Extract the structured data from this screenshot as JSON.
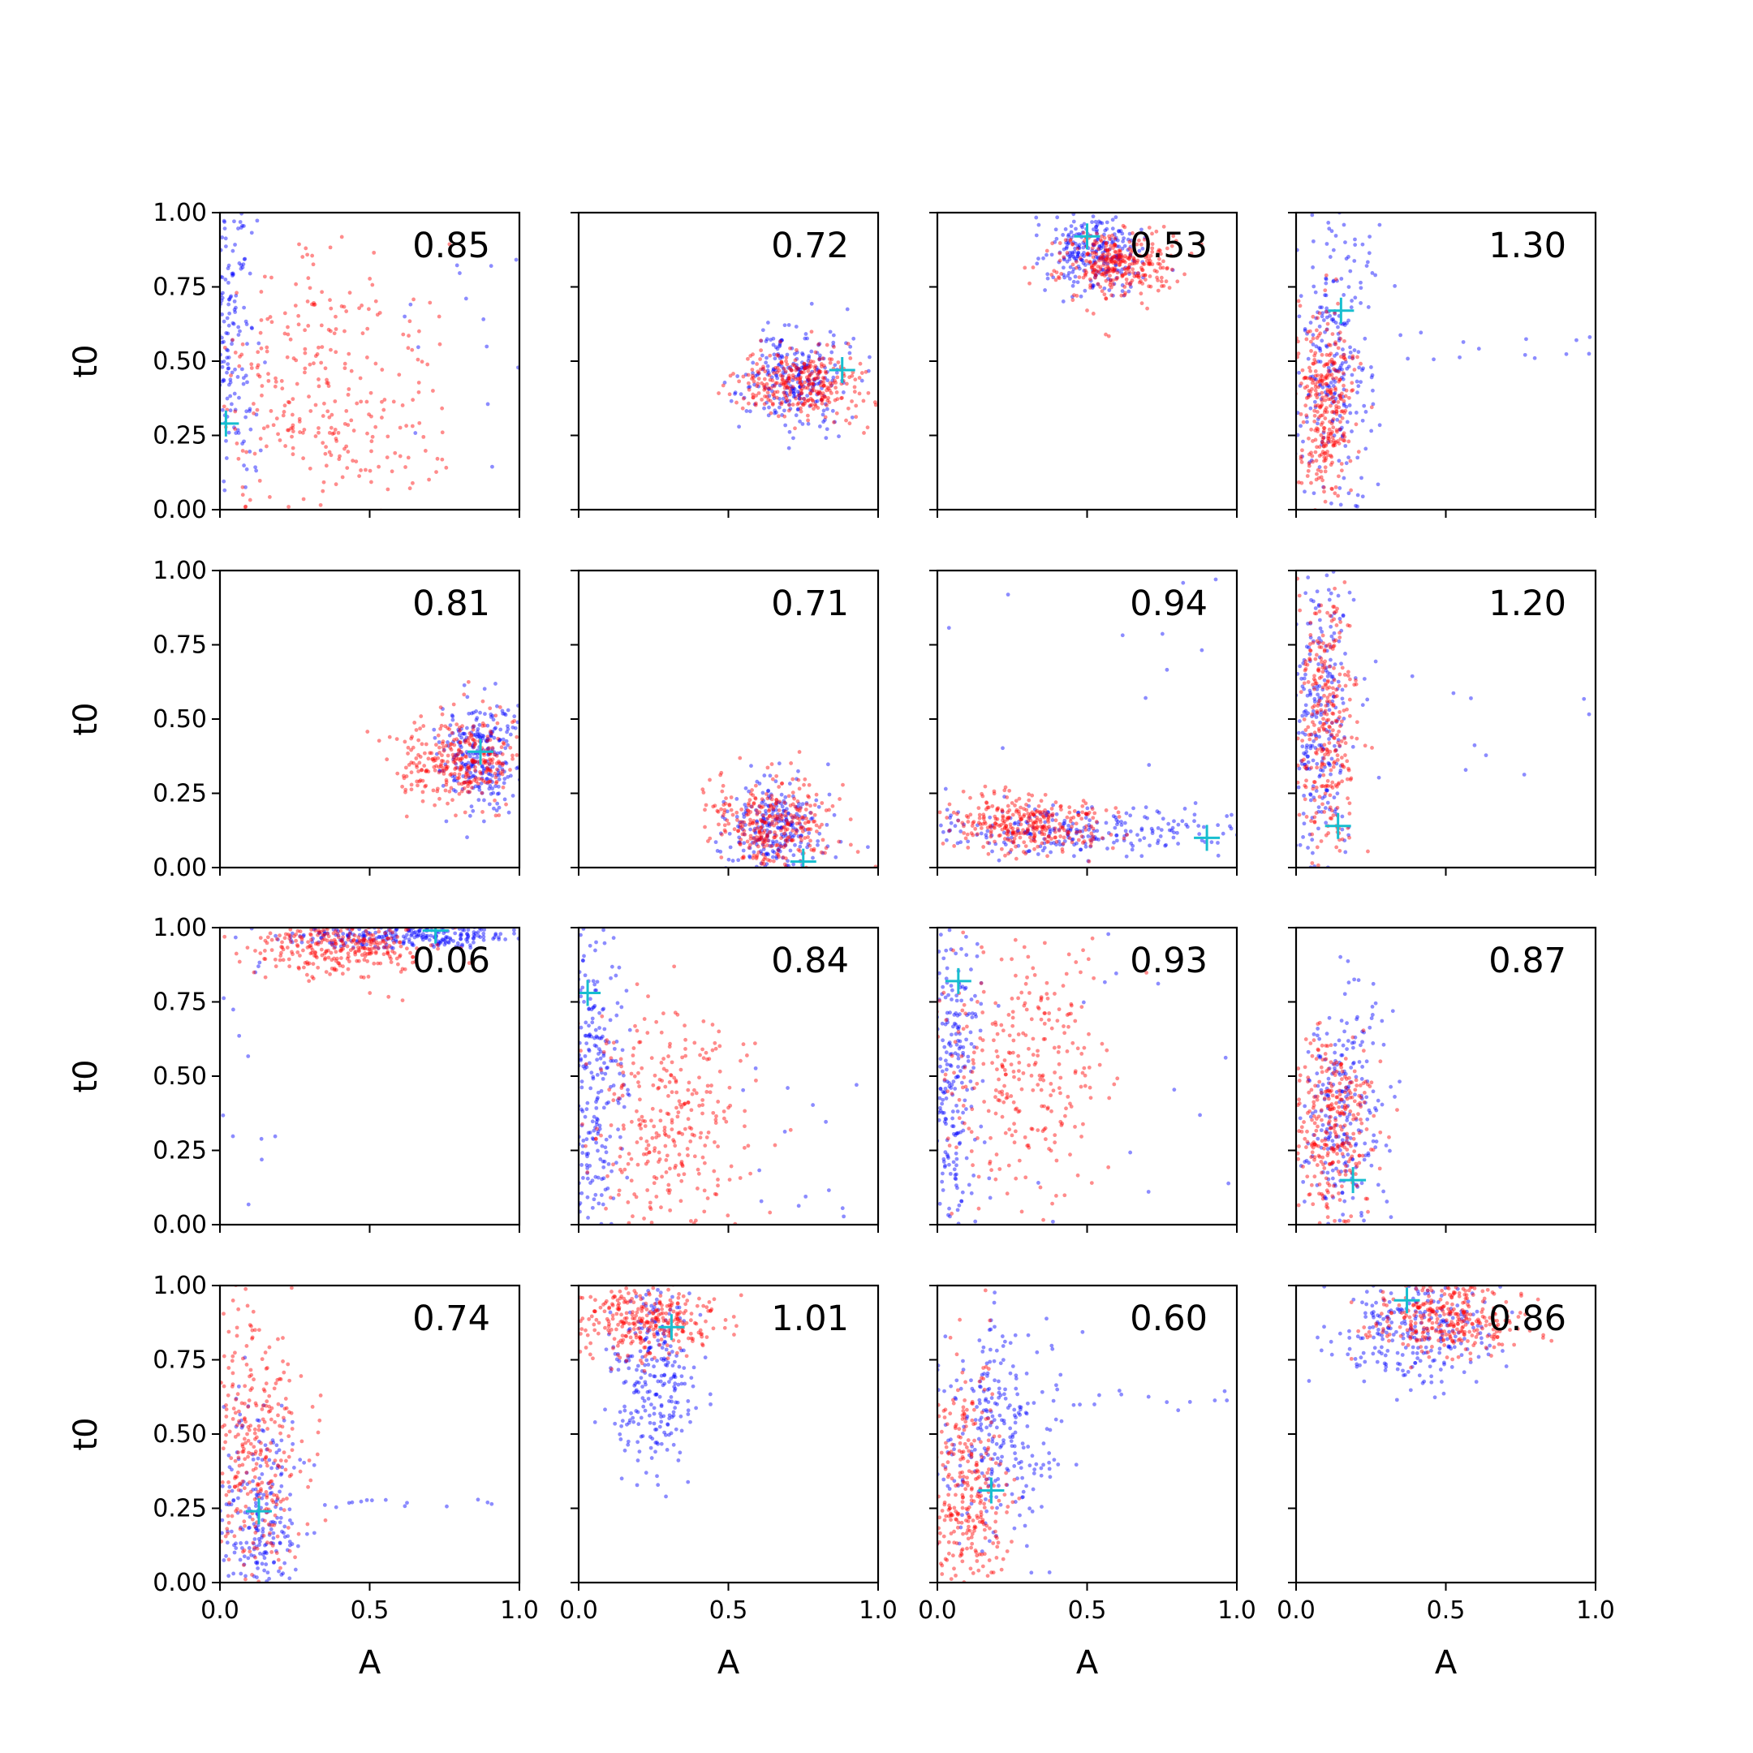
{
  "chart_data": {
    "type": "scatter",
    "layout": "4x4 grid of scatter subplots",
    "xlabel": "A",
    "ylabel": "t0",
    "xlim": [
      0.0,
      1.0
    ],
    "ylim": [
      0.0,
      1.0
    ],
    "xticks": [
      "0.0",
      "0.5",
      "1.0"
    ],
    "yticks": [
      "0.00",
      "0.25",
      "0.50",
      "0.75",
      "1.00"
    ],
    "grid": false,
    "legend": "none",
    "colors": {
      "series_blue": "#0000ff",
      "series_red": "#ff0000",
      "marker": "#17becf"
    },
    "panels": [
      {
        "label": "0.85",
        "marker": [
          0.02,
          0.29
        ],
        "blue": {
          "cx": 0.02,
          "cy": 0.55,
          "sx": 0.05,
          "sy": 0.35,
          "n": 260,
          "tail": {
            "x": [
              0.6,
              1.0
            ],
            "y": [
              0.0,
              1.0
            ],
            "n": 14
          }
        },
        "red": {
          "cx": 0.33,
          "cy": 0.38,
          "sx": 0.2,
          "sy": 0.25,
          "n": 320
        }
      },
      {
        "label": "0.72",
        "marker": [
          0.88,
          0.47
        ],
        "blue": {
          "cx": 0.72,
          "cy": 0.44,
          "sx": 0.08,
          "sy": 0.08,
          "n": 260
        },
        "red": {
          "cx": 0.75,
          "cy": 0.43,
          "sx": 0.1,
          "sy": 0.06,
          "n": 320
        }
      },
      {
        "label": "0.53",
        "marker": [
          0.5,
          0.92
        ],
        "blue": {
          "cx": 0.52,
          "cy": 0.87,
          "sx": 0.08,
          "sy": 0.07,
          "n": 260
        },
        "red": {
          "cx": 0.6,
          "cy": 0.83,
          "sx": 0.1,
          "sy": 0.06,
          "n": 320
        }
      },
      {
        "label": "1.30",
        "marker": [
          0.15,
          0.67
        ],
        "blue": {
          "cx": 0.13,
          "cy": 0.5,
          "sx": 0.06,
          "sy": 0.25,
          "n": 260,
          "tail": {
            "x": [
              0.25,
              1.0
            ],
            "y": [
              0.5,
              0.6
            ],
            "n": 14
          }
        },
        "red": {
          "cx": 0.1,
          "cy": 0.35,
          "sx": 0.05,
          "sy": 0.15,
          "n": 320
        }
      },
      {
        "label": "0.81",
        "marker": [
          0.87,
          0.39
        ],
        "blue": {
          "cx": 0.87,
          "cy": 0.38,
          "sx": 0.07,
          "sy": 0.09,
          "n": 260
        },
        "red": {
          "cx": 0.8,
          "cy": 0.36,
          "sx": 0.1,
          "sy": 0.07,
          "n": 320
        }
      },
      {
        "label": "0.71",
        "marker": [
          0.75,
          0.02
        ],
        "blue": {
          "cx": 0.65,
          "cy": 0.12,
          "sx": 0.08,
          "sy": 0.08,
          "n": 260
        },
        "red": {
          "cx": 0.65,
          "cy": 0.15,
          "sx": 0.1,
          "sy": 0.08,
          "n": 320
        }
      },
      {
        "label": "0.94",
        "marker": [
          0.9,
          0.1
        ],
        "blue": {
          "cx": 0.5,
          "cy": 0.12,
          "sx": 0.3,
          "sy": 0.04,
          "n": 260,
          "tail": {
            "x": [
              0.0,
              1.0
            ],
            "y": [
              0.0,
              1.0
            ],
            "n": 14
          }
        },
        "red": {
          "cx": 0.3,
          "cy": 0.15,
          "sx": 0.13,
          "sy": 0.05,
          "n": 320
        }
      },
      {
        "label": "1.20",
        "marker": [
          0.14,
          0.14
        ],
        "blue": {
          "cx": 0.08,
          "cy": 0.5,
          "sx": 0.05,
          "sy": 0.28,
          "n": 260,
          "tail": {
            "x": [
              0.2,
              1.0
            ],
            "y": [
              0.3,
              0.7
            ],
            "n": 14
          }
        },
        "red": {
          "cx": 0.1,
          "cy": 0.5,
          "sx": 0.05,
          "sy": 0.25,
          "n": 320
        }
      },
      {
        "label": "0.06",
        "marker": [
          0.72,
          0.99
        ],
        "blue": {
          "cx": 0.6,
          "cy": 0.97,
          "sx": 0.2,
          "sy": 0.02,
          "n": 260,
          "tail": {
            "x": [
              0.0,
              0.2
            ],
            "y": [
              0.0,
              1.0
            ],
            "n": 14
          }
        },
        "red": {
          "cx": 0.4,
          "cy": 0.94,
          "sx": 0.15,
          "sy": 0.05,
          "n": 320
        }
      },
      {
        "label": "0.84",
        "marker": [
          0.03,
          0.78
        ],
        "blue": {
          "cx": 0.05,
          "cy": 0.45,
          "sx": 0.05,
          "sy": 0.3,
          "n": 260,
          "tail": {
            "x": [
              0.4,
              1.0
            ],
            "y": [
              0.0,
              0.6
            ],
            "n": 14
          }
        },
        "red": {
          "cx": 0.3,
          "cy": 0.35,
          "sx": 0.15,
          "sy": 0.2,
          "n": 320
        }
      },
      {
        "label": "0.93",
        "marker": [
          0.07,
          0.82
        ],
        "blue": {
          "cx": 0.05,
          "cy": 0.5,
          "sx": 0.05,
          "sy": 0.3,
          "n": 260,
          "tail": {
            "x": [
              0.3,
              1.0
            ],
            "y": [
              0.0,
              1.0
            ],
            "n": 14
          }
        },
        "red": {
          "cx": 0.25,
          "cy": 0.55,
          "sx": 0.15,
          "sy": 0.25,
          "n": 320
        }
      },
      {
        "label": "0.87",
        "marker": [
          0.19,
          0.15
        ],
        "blue": {
          "cx": 0.15,
          "cy": 0.35,
          "sx": 0.07,
          "sy": 0.22,
          "n": 260
        },
        "red": {
          "cx": 0.12,
          "cy": 0.33,
          "sx": 0.07,
          "sy": 0.15,
          "n": 320
        }
      },
      {
        "label": "0.74",
        "marker": [
          0.13,
          0.24
        ],
        "blue": {
          "cx": 0.12,
          "cy": 0.2,
          "sx": 0.07,
          "sy": 0.18,
          "n": 260,
          "tail": {
            "x": [
              0.3,
              1.0
            ],
            "y": [
              0.25,
              0.28
            ],
            "n": 14
          }
        },
        "red": {
          "cx": 0.12,
          "cy": 0.45,
          "sx": 0.08,
          "sy": 0.25,
          "n": 320
        }
      },
      {
        "label": "1.01",
        "marker": [
          0.31,
          0.86
        ],
        "blue": {
          "cx": 0.25,
          "cy": 0.7,
          "sx": 0.07,
          "sy": 0.15,
          "n": 260
        },
        "red": {
          "cx": 0.22,
          "cy": 0.88,
          "sx": 0.12,
          "sy": 0.06,
          "n": 320
        }
      },
      {
        "label": "0.60",
        "marker": [
          0.18,
          0.31
        ],
        "blue": {
          "cx": 0.2,
          "cy": 0.5,
          "sx": 0.1,
          "sy": 0.18,
          "n": 260,
          "tail": {
            "x": [
              0.35,
              1.0
            ],
            "y": [
              0.58,
              0.65
            ],
            "n": 14
          }
        },
        "red": {
          "cx": 0.1,
          "cy": 0.3,
          "sx": 0.07,
          "sy": 0.2,
          "n": 320
        }
      },
      {
        "label": "0.86",
        "marker": [
          0.37,
          0.95
        ],
        "blue": {
          "cx": 0.38,
          "cy": 0.86,
          "sx": 0.13,
          "sy": 0.1,
          "n": 260
        },
        "red": {
          "cx": 0.5,
          "cy": 0.89,
          "sx": 0.13,
          "sy": 0.06,
          "n": 320
        }
      }
    ]
  }
}
